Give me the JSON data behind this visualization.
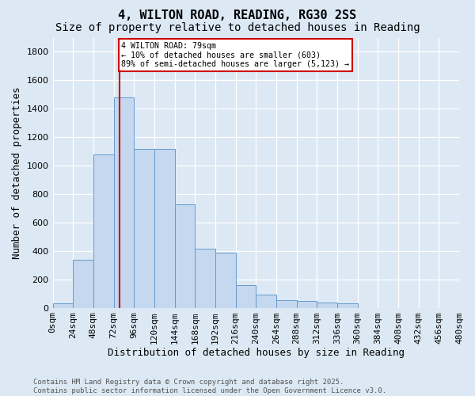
{
  "title": "4, WILTON ROAD, READING, RG30 2SS",
  "subtitle": "Size of property relative to detached houses in Reading",
  "xlabel": "Distribution of detached houses by size in Reading",
  "ylabel": "Number of detached properties",
  "bar_color": "#c5d8ef",
  "bar_edge_color": "#6699cc",
  "background_color": "#dce9f5",
  "annotation_text": "4 WILTON ROAD: 79sqm\n← 10% of detached houses are smaller (603)\n89% of semi-detached houses are larger (5,123) →",
  "vline_x": 79,
  "vline_color": "#cc0000",
  "footer_text": "Contains HM Land Registry data © Crown copyright and database right 2025.\nContains public sector information licensed under the Open Government Licence v3.0.",
  "bin_width": 24,
  "bar_lefts": [
    0,
    24,
    48,
    72,
    96,
    120,
    144,
    168,
    192,
    216,
    240,
    264,
    288,
    312,
    336,
    360,
    384,
    408,
    432,
    456
  ],
  "bar_values": [
    30,
    340,
    1080,
    1480,
    1120,
    1120,
    730,
    415,
    390,
    160,
    90,
    52,
    48,
    38,
    32,
    0,
    0,
    0,
    0,
    0
  ],
  "ylim": [
    0,
    1900
  ],
  "yticks": [
    0,
    200,
    400,
    600,
    800,
    1000,
    1200,
    1400,
    1600,
    1800
  ],
  "xtick_labels": [
    "0sqm",
    "24sqm",
    "48sqm",
    "72sqm",
    "96sqm",
    "120sqm",
    "144sqm",
    "168sqm",
    "192sqm",
    "216sqm",
    "240sqm",
    "264sqm",
    "288sqm",
    "312sqm",
    "336sqm",
    "360sqm",
    "384sqm",
    "408sqm",
    "432sqm",
    "456sqm",
    "480sqm"
  ],
  "grid_color": "#ffffff",
  "title_fontsize": 11,
  "subtitle_fontsize": 10,
  "label_fontsize": 9,
  "tick_fontsize": 8,
  "footer_fontsize": 6.5
}
